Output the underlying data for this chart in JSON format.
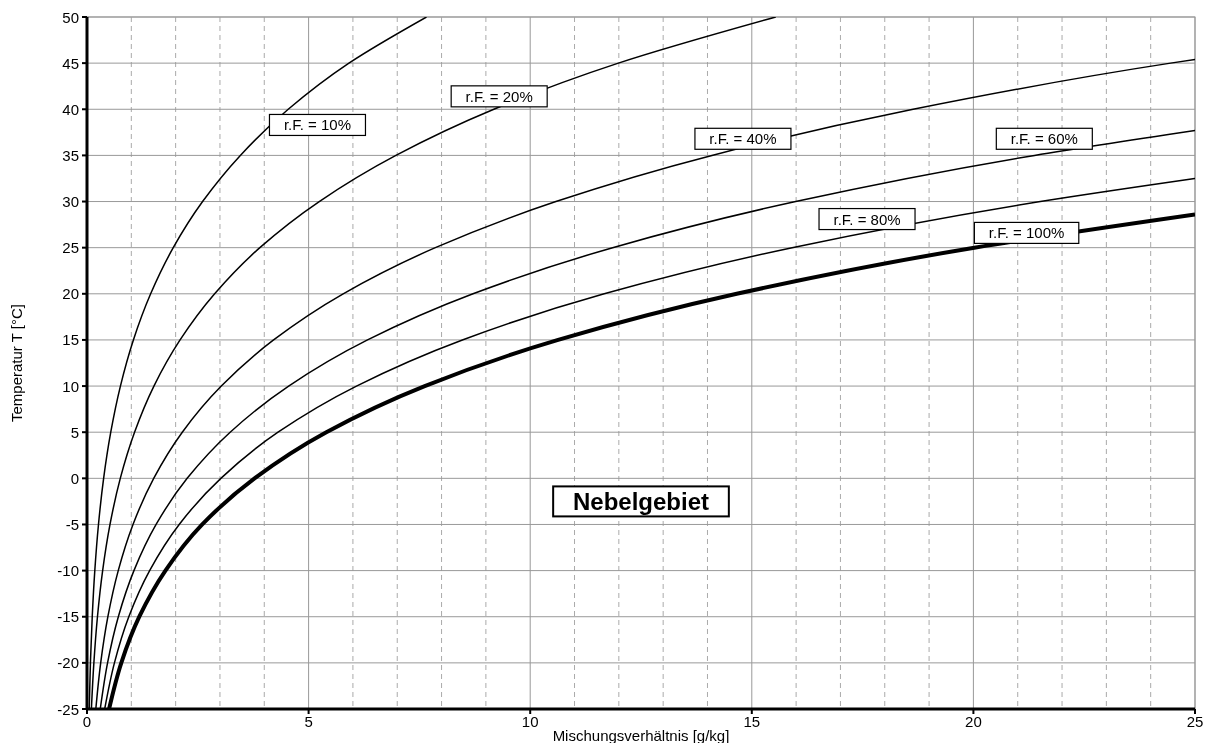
{
  "chart_data": {
    "type": "line",
    "xlabel": "Mischungsverhältnis [g/kg]",
    "ylabel": "Temperatur T [°C]",
    "xlim": [
      0,
      25
    ],
    "ylim": [
      -25,
      50
    ],
    "xticks": [
      0,
      {
        "value": 1,
        "label": null
      },
      {
        "value": 2,
        "label": null
      },
      {
        "value": 3,
        "label": null
      },
      {
        "value": 4,
        "label": null
      },
      5,
      {
        "value": 6,
        "label": null
      },
      {
        "value": 7,
        "label": null
      },
      {
        "value": 8,
        "label": null
      },
      {
        "value": 9,
        "label": null
      },
      10,
      {
        "value": 11,
        "label": null
      },
      {
        "value": 12,
        "label": null
      },
      {
        "value": 13,
        "label": null
      },
      {
        "value": 14,
        "label": null
      },
      15,
      {
        "value": 16,
        "label": null
      },
      {
        "value": 17,
        "label": null
      },
      {
        "value": 18,
        "label": null
      },
      {
        "value": 19,
        "label": null
      },
      20,
      {
        "value": 21,
        "label": null
      },
      {
        "value": 22,
        "label": null
      },
      {
        "value": 23,
        "label": null
      },
      {
        "value": 24,
        "label": null
      },
      25
    ],
    "yticks": [
      -25,
      -20,
      -15,
      -10,
      -5,
      0,
      5,
      10,
      15,
      20,
      25,
      30,
      35,
      40,
      45,
      50
    ],
    "grid": true,
    "marker": "none",
    "line_style": "solid",
    "series": [
      {
        "name": "r.F. = 10%",
        "color": "#000000",
        "x": [
          0.05,
          0.077,
          0.118,
          0.176,
          0.259,
          0.375,
          0.536,
          0.754,
          1.047,
          1.436,
          1.946,
          2.608,
          3.46,
          4.54,
          5.91,
          7.66
        ],
        "values": [
          -25,
          -20,
          -15,
          -10,
          -5,
          0,
          5,
          10,
          15,
          20,
          25,
          30,
          35,
          40,
          45,
          50
        ]
      },
      {
        "name": "r.F. = 20%",
        "color": "#000000",
        "x": [
          0.099,
          0.155,
          0.236,
          0.353,
          0.519,
          0.751,
          1.073,
          1.51,
          2.1,
          2.88,
          3.9,
          5.24,
          6.97,
          9.18,
          11.99,
          15.54
        ],
        "values": [
          -25,
          -20,
          -15,
          -10,
          -5,
          0,
          5,
          10,
          15,
          20,
          25,
          30,
          35,
          40,
          45,
          50
        ]
      },
      {
        "name": "r.F. = 40%",
        "color": "#000000",
        "x": [
          0.199,
          0.309,
          0.471,
          0.705,
          1.038,
          1.505,
          2.15,
          3.03,
          4.21,
          5.78,
          7.86,
          10.58,
          14.1,
          18.64,
          24.45,
          25
        ],
        "values": [
          -25,
          -20,
          -15,
          -10,
          -5,
          0,
          5,
          10,
          15,
          20,
          25,
          30,
          35,
          40,
          45,
          45.4
        ]
      },
      {
        "name": "r.F. = 60%",
        "color": "#000000",
        "x": [
          0.299,
          0.464,
          0.707,
          1.059,
          1.559,
          2.26,
          3.23,
          4.55,
          6.33,
          8.71,
          11.86,
          15.99,
          21.38,
          25
        ],
        "values": [
          -25,
          -20,
          -15,
          -10,
          -5,
          0,
          5,
          10,
          15,
          20,
          25,
          30,
          35,
          37.7
        ]
      },
      {
        "name": "r.F. = 80%",
        "color": "#000000",
        "x": [
          0.399,
          0.619,
          0.943,
          1.413,
          2.08,
          3.02,
          4.31,
          6.08,
          8.47,
          11.67,
          15.91,
          21.51,
          25
        ],
        "values": [
          -25,
          -20,
          -15,
          -10,
          -5,
          0,
          5,
          10,
          15,
          20,
          25,
          30,
          32.5
        ]
      },
      {
        "name": "r.F. = 100%",
        "color": "#000000",
        "x": [
          0.498,
          0.774,
          1.18,
          1.77,
          2.6,
          3.78,
          5.4,
          7.62,
          10.63,
          14.66,
          20.02,
          25
        ],
        "values": [
          -25,
          -20,
          -15,
          -10,
          -5,
          0,
          5,
          10,
          15,
          20,
          25,
          28.6
        ]
      }
    ],
    "annotations": [
      "Nebelgebiet"
    ]
  }
}
